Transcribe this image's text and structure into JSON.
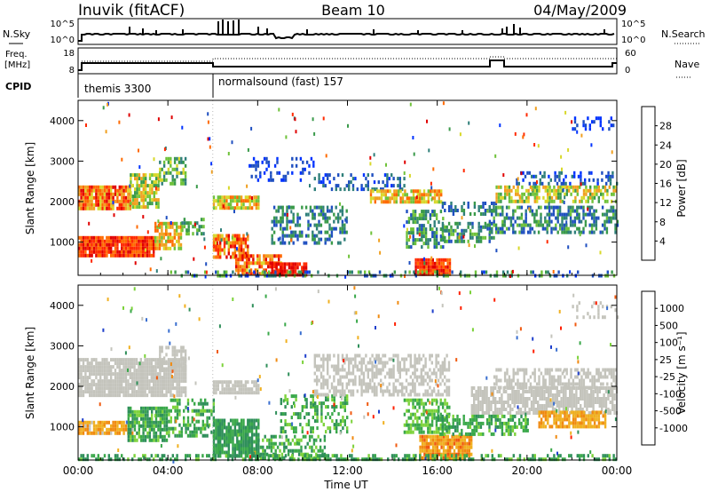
{
  "header": {
    "station": "Inuvik (fitACF)",
    "beam": "Beam 10",
    "date": "04/May/2009"
  },
  "param_rows": {
    "nsky_label": "N.Sky",
    "nsky_ticks": [
      "10^5",
      "10^0"
    ],
    "nsearch_label": "N.Search",
    "freq_label_1": "Freq.",
    "freq_label_2": "[MHz]",
    "freq_ticks": [
      "18",
      "8"
    ],
    "nave_ticks": [
      "60",
      "0"
    ],
    "nave_label": "Nave",
    "cpid_label": "CPID",
    "cpid_modes": [
      {
        "name": "themis 3300",
        "start_hour": 0
      },
      {
        "name": "normalsound (fast) 157",
        "start_hour": 6
      }
    ]
  },
  "chart_data": [
    {
      "type": "heatmap",
      "title": "",
      "ylabel": "Slant Range [km]",
      "xlabel": "",
      "y_ticks": [
        "1000",
        "2000",
        "3000",
        "4000"
      ],
      "ylim": [
        180,
        4500
      ],
      "xlim": [
        0,
        24
      ],
      "colorbar": {
        "label": "Power [dB]",
        "ticks": [
          "4",
          "8",
          "12",
          "16",
          "20",
          "24",
          "28"
        ],
        "colors": [
          "#0033ff",
          "#1f4fc0",
          "#2f7f7a",
          "#3a9a4a",
          "#6fc23a",
          "#d8d82a",
          "#f0a020",
          "#ff6a00",
          "#ff2a00",
          "#e00000"
        ]
      }
    },
    {
      "type": "heatmap",
      "title": "",
      "ylabel": "Slant Range [km]",
      "xlabel": "Time UT",
      "x_ticks": [
        "00:00",
        "04:00",
        "08:00",
        "12:00",
        "16:00",
        "20:00",
        "00:00"
      ],
      "y_ticks": [
        "1000",
        "2000",
        "3000",
        "4000"
      ],
      "ylim": [
        180,
        4500
      ],
      "xlim": [
        0,
        24
      ],
      "colorbar": {
        "label": "Velocity [m s⁻¹]",
        "ticks": [
          "1000",
          "500",
          "100",
          "25",
          "-25",
          "-100",
          "-500",
          "-1000"
        ],
        "colors": [
          "#1f3fcc",
          "#3a6fd0",
          "#2f8f5a",
          "#3aa84a",
          "#7cd23a",
          "#c4c4bc",
          "#f0b020",
          "#f08a10",
          "#f05a10",
          "#ff2000"
        ]
      }
    }
  ]
}
